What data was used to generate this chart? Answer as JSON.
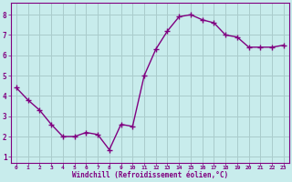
{
  "x": [
    0,
    1,
    2,
    3,
    4,
    5,
    6,
    7,
    8,
    9,
    10,
    11,
    12,
    13,
    14,
    15,
    16,
    17,
    18,
    19,
    20,
    21,
    22,
    23
  ],
  "y": [
    4.4,
    3.8,
    3.3,
    2.6,
    2.0,
    2.0,
    2.2,
    2.1,
    1.35,
    2.6,
    2.5,
    5.0,
    6.3,
    7.2,
    7.9,
    8.0,
    7.75,
    7.6,
    7.0,
    6.9,
    6.4,
    6.4,
    6.4,
    6.5
  ],
  "line_color": "#800080",
  "marker_color": "#800080",
  "bg_color": "#c8ecec",
  "grid_color": "#aacccc",
  "xlabel": "Windchill (Refroidissement éolien,°C)",
  "xlabel_color": "#800080",
  "tick_color": "#800080",
  "xlim": [
    -0.5,
    23.5
  ],
  "ylim": [
    0.7,
    8.6
  ],
  "yticks": [
    1,
    2,
    3,
    4,
    5,
    6,
    7,
    8
  ],
  "xticks": [
    0,
    1,
    2,
    3,
    4,
    5,
    6,
    7,
    8,
    9,
    10,
    11,
    12,
    13,
    14,
    15,
    16,
    17,
    18,
    19,
    20,
    21,
    22,
    23
  ],
  "xtick_labels": [
    "0",
    "1",
    "2",
    "3",
    "4",
    "5",
    "6",
    "7",
    "8",
    "9",
    "10",
    "11",
    "12",
    "13",
    "14",
    "15",
    "16",
    "17",
    "18",
    "19",
    "20",
    "21",
    "22",
    "23"
  ]
}
